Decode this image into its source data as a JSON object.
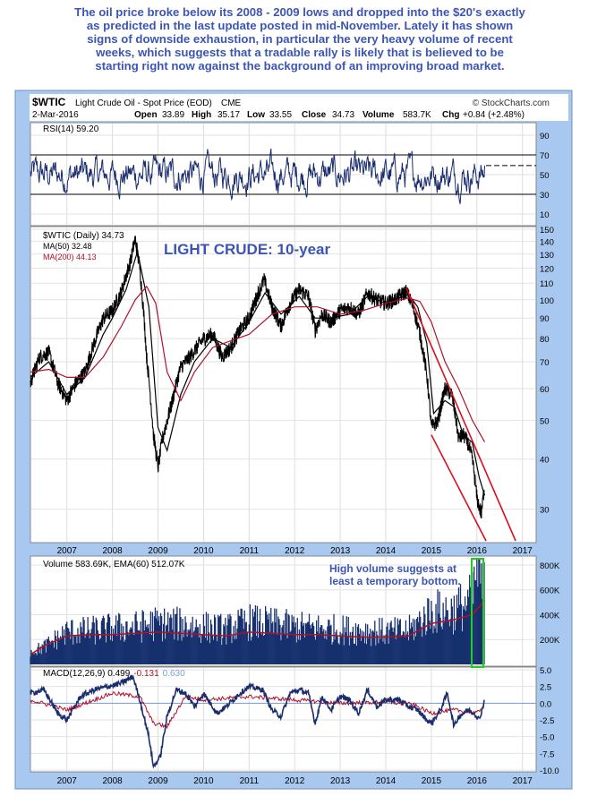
{
  "caption": {
    "lines": [
      "The oil price broke below its 2008 - 2009 lows and dropped into the $20's exactly",
      "as predicted in the last update posted in mid-November. Lately it has shown",
      "signs of downside exhaustion, in particular the very heavy volume of recent",
      "weeks, which suggests that a tradable rally is likely that is believed to be",
      "starting right now against the background of an improving broad market."
    ]
  },
  "header": {
    "symbol": "$WTIC",
    "name": "Light Crude Oil - Spot Price (EOD)",
    "exchange": "CME",
    "watermark": "© StockCharts.com",
    "date": "2-Mar-2016",
    "open_label": "Open",
    "open": "33.89",
    "high_label": "High",
    "high": "35.17",
    "low_label": "Low",
    "low": "33.55",
    "close_label": "Close",
    "close": "34.73",
    "volume_label": "Volume",
    "volume": "583.7K",
    "chg_label": "Chg",
    "chg": "+0.84 (+2.48%)"
  },
  "colors": {
    "frame_blue": "#a8c8f0",
    "price_black": "#000000",
    "ma_red": "#b0102a",
    "rsi_navy": "#1a2d6e",
    "annotation_blue": "#3c55b5",
    "trendline_red": "#d8101c",
    "highlight_green": "#22cc22",
    "volume_navy": "#16306e"
  },
  "chart_data": [
    {
      "type": "line",
      "panel": "rsi",
      "title": "RSI(14) 59.20",
      "y_ticks": [
        "90",
        "70",
        "50",
        "30",
        "10"
      ],
      "ylim": [
        0,
        100
      ],
      "reference_lines": [
        30,
        70
      ],
      "last_value": 59.2
    },
    {
      "type": "line",
      "panel": "price",
      "annotation": "LIGHT CRUDE: 10-year",
      "log_scale": true,
      "ylim": [
        25,
        150
      ],
      "y_ticks": [
        "150",
        "140",
        "130",
        "120",
        "110",
        "100",
        "90",
        "80",
        "70",
        "60",
        "50",
        "40",
        "30"
      ],
      "x_ticks": [
        "2007",
        "2008",
        "2009",
        "2010",
        "2011",
        "2012",
        "2013",
        "2014",
        "2015",
        "2016",
        "2017"
      ],
      "series": [
        {
          "name": "$WTIC (Daily) 34.73",
          "color": "#000000",
          "x": [
            2006.2,
            2006.4,
            2006.6,
            2006.8,
            2007.0,
            2007.2,
            2007.4,
            2007.6,
            2007.8,
            2008.0,
            2008.2,
            2008.4,
            2008.5,
            2008.6,
            2008.75,
            2008.9,
            2009.0,
            2009.1,
            2009.3,
            2009.5,
            2009.7,
            2010.0,
            2010.2,
            2010.4,
            2010.6,
            2010.8,
            2011.0,
            2011.2,
            2011.33,
            2011.5,
            2011.7,
            2011.9,
            2012.1,
            2012.3,
            2012.45,
            2012.6,
            2012.8,
            2013.0,
            2013.2,
            2013.4,
            2013.6,
            2013.8,
            2014.0,
            2014.2,
            2014.45,
            2014.6,
            2014.75,
            2014.9,
            2015.0,
            2015.15,
            2015.3,
            2015.45,
            2015.6,
            2015.7,
            2015.8,
            2015.9,
            2016.0,
            2016.1,
            2016.17
          ],
          "y": [
            62,
            72,
            74,
            62,
            56,
            62,
            66,
            78,
            90,
            94,
            105,
            125,
            142,
            120,
            72,
            46,
            38,
            45,
            55,
            68,
            72,
            80,
            82,
            72,
            76,
            84,
            90,
            104,
            112,
            96,
            86,
            98,
            106,
            102,
            84,
            92,
            88,
            94,
            96,
            92,
            104,
            100,
            98,
            100,
            105,
            96,
            82,
            65,
            48,
            50,
            60,
            58,
            45,
            46,
            44,
            40,
            32,
            29,
            34.73
          ]
        },
        {
          "name": "MA(50) 32.48",
          "color": "#000000",
          "x": [
            2006.2,
            2006.6,
            2007.0,
            2007.4,
            2007.8,
            2008.0,
            2008.3,
            2008.55,
            2008.8,
            2009.0,
            2009.2,
            2009.5,
            2009.8,
            2010.2,
            2010.6,
            2011.0,
            2011.35,
            2011.7,
            2012.1,
            2012.45,
            2012.8,
            2013.2,
            2013.6,
            2014.0,
            2014.5,
            2014.7,
            2014.9,
            2015.05,
            2015.3,
            2015.5,
            2015.7,
            2015.9,
            2016.05,
            2016.17
          ],
          "y": [
            64,
            70,
            58,
            64,
            82,
            90,
            106,
            132,
            96,
            48,
            42,
            58,
            70,
            80,
            76,
            88,
            104,
            92,
            102,
            90,
            90,
            92,
            102,
            98,
            103,
            96,
            78,
            52,
            56,
            54,
            46,
            44,
            36,
            32.48
          ]
        },
        {
          "name": "MA(200) 44.13",
          "color": "#b0102a",
          "x": [
            2006.2,
            2006.6,
            2007.0,
            2007.4,
            2007.8,
            2008.2,
            2008.5,
            2008.75,
            2008.95,
            2009.2,
            2009.5,
            2009.8,
            2010.2,
            2010.6,
            2011.0,
            2011.5,
            2012.0,
            2012.5,
            2013.0,
            2013.5,
            2014.0,
            2014.5,
            2014.75,
            2015.0,
            2015.3,
            2015.6,
            2015.9,
            2016.17
          ],
          "y": [
            66,
            67,
            64,
            64,
            72,
            86,
            100,
            108,
            98,
            66,
            56,
            66,
            76,
            79,
            82,
            92,
            96,
            96,
            92,
            94,
            98,
            101,
            99,
            88,
            70,
            60,
            50,
            44.13
          ]
        }
      ],
      "trendlines": [
        {
          "color": "#d8101c",
          "x": [
            2014.45,
            2016.85
          ],
          "y": [
            107,
            25
          ]
        },
        {
          "color": "#d8101c",
          "x": [
            2015.0,
            2016.2
          ],
          "y": [
            46,
            25
          ]
        }
      ]
    },
    {
      "type": "bar",
      "panel": "volume",
      "title": "Volume 583.69K, EMA(60) 512.07K",
      "annotation": "High volume suggests at least a temporary bottom.",
      "y_ticks": [
        "800K",
        "600K",
        "400K",
        "200K"
      ],
      "ylim": [
        0,
        850000
      ],
      "series": [
        {
          "name": "Volume 583.69K",
          "color": "#16306e",
          "x": [
            2006.2,
            2006.5,
            2007.0,
            2007.5,
            2008.0,
            2008.5,
            2009.0,
            2009.5,
            2010.0,
            2010.5,
            2011.0,
            2011.5,
            2012.0,
            2012.5,
            2013.0,
            2013.5,
            2014.0,
            2014.5,
            2015.0,
            2015.5,
            2015.9,
            2016.0,
            2016.1,
            2016.17
          ],
          "y": [
            100000,
            140000,
            260000,
            270000,
            290000,
            300000,
            330000,
            320000,
            300000,
            280000,
            340000,
            320000,
            300000,
            290000,
            280000,
            270000,
            260000,
            270000,
            420000,
            430000,
            520000,
            760000,
            640000,
            583690
          ]
        },
        {
          "name": "EMA(60) 512.07K",
          "color": "#b0102a",
          "x": [
            2006.2,
            2006.5,
            2007.0,
            2007.5,
            2008.0,
            2008.5,
            2009.0,
            2009.5,
            2010.0,
            2010.5,
            2011.0,
            2011.5,
            2012.0,
            2012.5,
            2013.0,
            2013.5,
            2014.0,
            2014.5,
            2015.0,
            2015.5,
            2015.9,
            2016.17
          ],
          "y": [
            80000,
            150000,
            230000,
            240000,
            240000,
            250000,
            260000,
            250000,
            240000,
            230000,
            260000,
            250000,
            240000,
            240000,
            230000,
            220000,
            220000,
            230000,
            330000,
            360000,
            400000,
            512070
          ]
        }
      ]
    },
    {
      "type": "line",
      "panel": "macd",
      "title": "MACD(12,26,9) 0.499, -0.131, 0.630",
      "y_ticks": [
        "5.0",
        "2.5",
        "0.0",
        "-2.5",
        "-5.0",
        "-7.5",
        "-10.0"
      ],
      "ylim": [
        -10,
        5
      ],
      "x_ticks": [
        "2007",
        "2008",
        "2009",
        "2010",
        "2011",
        "2012",
        "2013",
        "2014",
        "2015",
        "2016",
        "2017"
      ],
      "series": [
        {
          "name": "MACD(12,26,9) 0.499",
          "color": "#1a2d6e",
          "x": [
            2006.2,
            2006.5,
            2006.8,
            2007.0,
            2007.3,
            2007.6,
            2007.9,
            2008.2,
            2008.45,
            2008.6,
            2008.8,
            2008.9,
            2009.05,
            2009.2,
            2009.4,
            2009.6,
            2009.8,
            2010.0,
            2010.3,
            2010.5,
            2010.8,
            2011.0,
            2011.3,
            2011.5,
            2011.7,
            2011.9,
            2012.1,
            2012.3,
            2012.45,
            2012.6,
            2012.8,
            2013.0,
            2013.2,
            2013.4,
            2013.6,
            2013.8,
            2014.0,
            2014.3,
            2014.5,
            2014.7,
            2014.9,
            2015.0,
            2015.2,
            2015.35,
            2015.5,
            2015.6,
            2015.8,
            2015.95,
            2016.05,
            2016.17
          ],
          "y": [
            1.5,
            2,
            -1.5,
            -2.5,
            1,
            2,
            2.5,
            3,
            4,
            0.5,
            -5,
            -9.5,
            -8,
            -2,
            2,
            1.5,
            -0.5,
            1.5,
            -1.5,
            -0.5,
            1.5,
            2.5,
            2,
            -1,
            -2,
            1.5,
            2,
            1.5,
            -3,
            1,
            -1,
            1,
            0.5,
            -1.5,
            2,
            -0.5,
            0.5,
            0.5,
            -0.5,
            -1,
            -2.5,
            -3,
            -1,
            1.5,
            -3.5,
            -2,
            -1,
            -1.5,
            -2.5,
            0.499
          ]
        },
        {
          "name": "-0.131",
          "color": "#b0102a",
          "x": [
            2006.2,
            2007.0,
            2008.0,
            2008.6,
            2008.9,
            2009.2,
            2009.6,
            2010.0,
            2011.0,
            2012.0,
            2013.0,
            2014.0,
            2014.6,
            2015.0,
            2015.5,
            2016.0,
            2016.17
          ],
          "y": [
            0.5,
            -1,
            1.5,
            1,
            -3,
            -3.5,
            1,
            0.5,
            1,
            0.5,
            0,
            0.2,
            -0.2,
            -1.5,
            -1,
            -1.5,
            -0.131
          ]
        },
        {
          "name": "0.630",
          "color": "#7aa0d8",
          "x": [
            2006.2,
            2016.17
          ],
          "y": [
            0,
            0.63
          ]
        }
      ]
    }
  ]
}
